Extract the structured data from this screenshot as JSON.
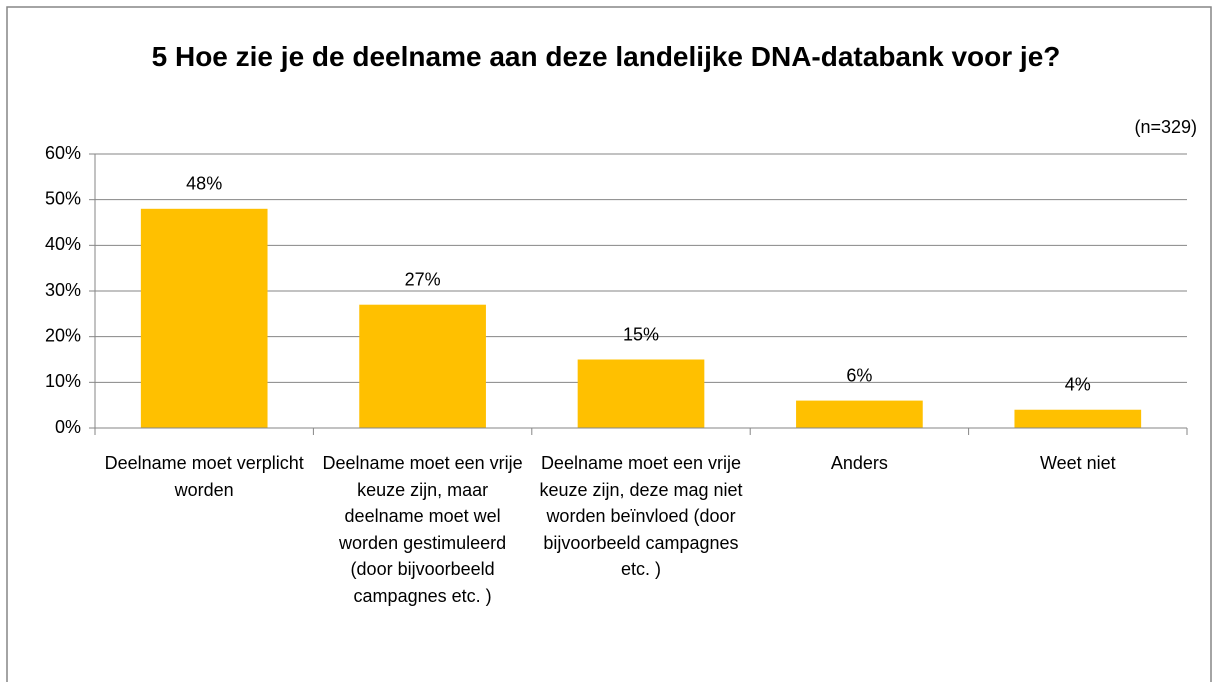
{
  "chart_data": {
    "type": "bar",
    "title": "5 Hoe zie je de deelname aan deze landelijke DNA-databank voor je?",
    "annotation": "(n=329)",
    "categories": [
      "Deelname moet verplicht worden",
      "Deelname moet een vrije keuze zijn, maar deelname moet wel worden gestimuleerd (door bijvoorbeeld campagnes etc. )",
      "Deelname moet een vrije keuze zijn, deze mag niet worden beïnvloed (door bijvoorbeeld campagnes etc. )",
      "Anders",
      "Weet niet"
    ],
    "values": [
      48,
      27,
      15,
      6,
      4
    ],
    "value_labels": [
      "48%",
      "27%",
      "15%",
      "6%",
      "4%"
    ],
    "color": "#ffc000",
    "ylim": [
      0,
      60
    ],
    "yticks": [
      {
        "value": 0,
        "label": "0%"
      },
      {
        "value": 10,
        "label": "10%"
      },
      {
        "value": 20,
        "label": "20%"
      },
      {
        "value": 30,
        "label": "30%"
      },
      {
        "value": 40,
        "label": "40%"
      },
      {
        "value": 50,
        "label": "50%"
      },
      {
        "value": 60,
        "label": "60%"
      }
    ],
    "grid": true
  }
}
